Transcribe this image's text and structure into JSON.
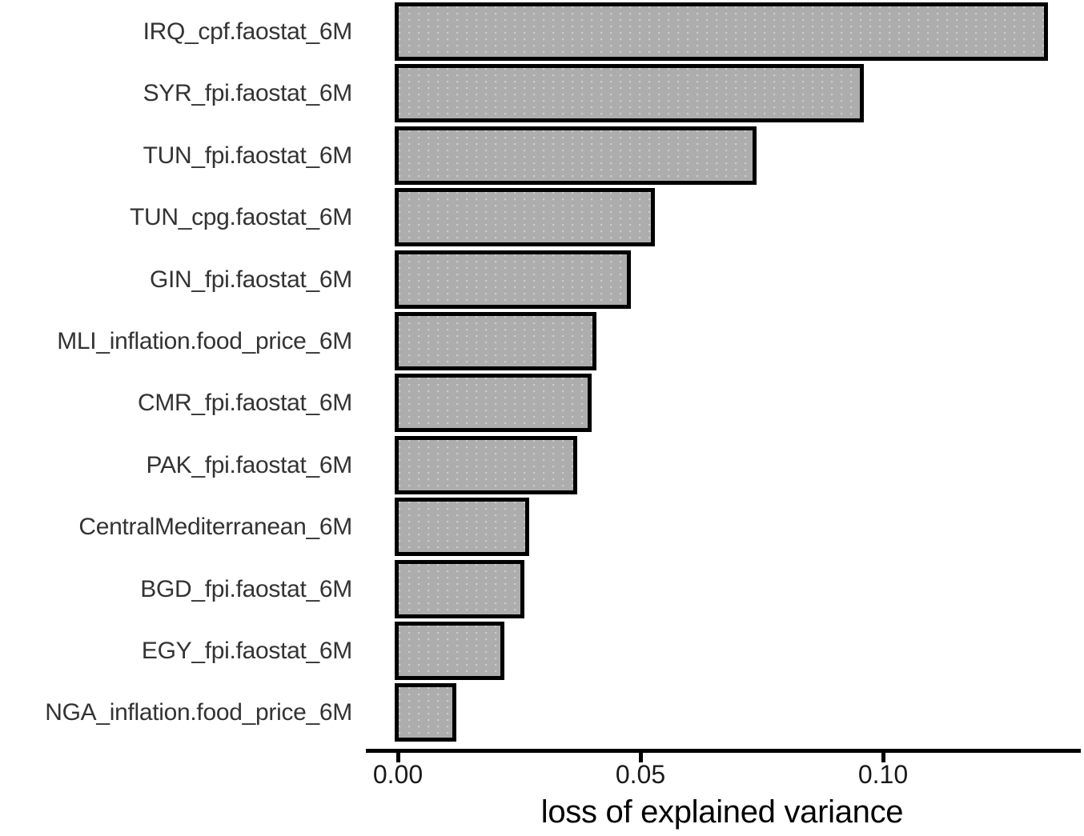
{
  "figure": {
    "background": "#ffffff"
  },
  "chart_data": {
    "type": "bar",
    "orientation": "horizontal",
    "title": "",
    "xlabel": "loss of explained variance",
    "ylabel": "",
    "categories": [
      "IRQ_cpf.faostat_6M",
      "SYR_fpi.faostat_6M",
      "TUN_fpi.faostat_6M",
      "TUN_cpg.faostat_6M",
      "GIN_fpi.faostat_6M",
      "MLI_inflation.food_price_6M",
      "CMR_fpi.faostat_6M",
      "PAK_fpi.faostat_6M",
      "CentralMediterranean_6M",
      "BGD_fpi.faostat_6M",
      "EGY_fpi.faostat_6M",
      "NGA_inflation.food_price_6M"
    ],
    "values": [
      0.134,
      0.096,
      0.074,
      0.053,
      0.048,
      0.041,
      0.04,
      0.037,
      0.027,
      0.026,
      0.022,
      0.012
    ],
    "xlim": [
      0,
      0.14
    ],
    "xticks": [
      {
        "value": 0.0,
        "label": "0.00"
      },
      {
        "value": 0.05,
        "label": "0.05"
      },
      {
        "value": 0.1,
        "label": "0.10"
      }
    ],
    "grid": false,
    "legend_position": "none",
    "colors": {
      "background": "#ffffff",
      "bar_fill": "#adadad",
      "bar_border": "#000000",
      "axis": "#000000",
      "category_label": "#333333",
      "tick_label": "#1a1a1a",
      "axis_title": "#000000"
    }
  }
}
